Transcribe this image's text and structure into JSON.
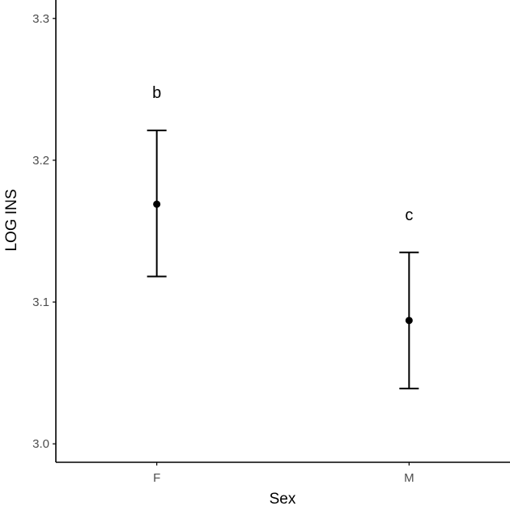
{
  "chart_data": {
    "type": "scatter",
    "categories": [
      "F",
      "M"
    ],
    "values": [
      3.169,
      3.087
    ],
    "error_low": [
      3.118,
      3.039
    ],
    "error_high": [
      3.221,
      3.135
    ],
    "annotations": [
      "b",
      "c"
    ],
    "xlabel": "Sex",
    "ylabel": "LOG INS",
    "ylim": [
      2.987,
      3.313
    ],
    "yticks": [
      "3.0",
      "3.1",
      "3.2",
      "3.3"
    ],
    "ytick_values": [
      3.0,
      3.1,
      3.2,
      3.3
    ],
    "grid": false,
    "legend": "none"
  },
  "colors": {
    "mark": "#000000",
    "axis": "#000000",
    "tick_text": "#4d4d4d"
  }
}
